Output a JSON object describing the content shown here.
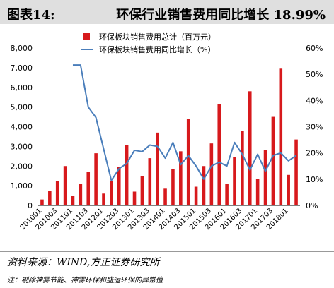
{
  "header": {
    "figure_label": "图表14:",
    "title": "环保行业销售费用同比增长 18.99%"
  },
  "footer": {
    "source": "资料来源：WIND,方正证券研究所",
    "note": "注：剔除神雾节能、神雾环保和盛运环保的异常值"
  },
  "chart_data": {
    "type": "bar",
    "categories": [
      "2010Q1",
      "2010Q2",
      "2010Q3",
      "2010Q4",
      "2011Q1",
      "2011Q2",
      "2011Q3",
      "2011Q4",
      "2012Q1",
      "2012Q2",
      "2012Q3",
      "2012Q4",
      "2013Q1",
      "2013Q2",
      "2013Q3",
      "2013Q4",
      "2014Q1",
      "2014Q2",
      "2014Q3",
      "2014Q4",
      "2015Q1",
      "2015Q2",
      "2015Q3",
      "2015Q4",
      "2016Q1",
      "2016Q2",
      "2016Q3",
      "2016Q4",
      "2017Q1",
      "2017Q2",
      "2017Q3",
      "2017Q4",
      "2018Q1",
      "2018Q2"
    ],
    "x_tick_labels": [
      "201001",
      "201003",
      "201101",
      "201103",
      "201201",
      "201203",
      "201301",
      "201303",
      "201401",
      "201403",
      "201501",
      "201503",
      "201601",
      "201603",
      "201701",
      "201703",
      "201801"
    ],
    "series": [
      {
        "name": "环保板块销售费用总计（百万元）",
        "type": "bar",
        "axis": "left",
        "color": "#d7191c",
        "values": [
          300,
          750,
          1250,
          2000,
          500,
          1100,
          1700,
          2650,
          600,
          1250,
          1950,
          3050,
          700,
          1500,
          2400,
          3700,
          850,
          1850,
          2750,
          4400,
          950,
          2000,
          3150,
          5150,
          1100,
          2450,
          3800,
          5800,
          1350,
          2800,
          4500,
          6950,
          1550,
          3350
        ]
      },
      {
        "name": "环保板块销售费用同比增长（%）",
        "type": "line",
        "axis": "right",
        "color": "#4a7ebb",
        "values": [
          null,
          null,
          null,
          null,
          53.5,
          53.5,
          37.5,
          33.5,
          21.5,
          9.5,
          14.0,
          16.0,
          21.0,
          20.5,
          23.0,
          22.5,
          18.0,
          24.0,
          15.5,
          19.0,
          15.0,
          10.0,
          15.0,
          16.5,
          15.0,
          24.0,
          19.5,
          13.5,
          19.5,
          13.0,
          19.0,
          20.0,
          17.0,
          19.0
        ]
      }
    ],
    "y_left": {
      "min": 0,
      "max": 8000,
      "step": 1000,
      "ticks": [
        "0",
        "1,000",
        "2,000",
        "3,000",
        "4,000",
        "5,000",
        "6,000",
        "7,000",
        "8,000"
      ]
    },
    "y_right": {
      "min": 0,
      "max": 60,
      "step": 10,
      "ticks": [
        "0%",
        "10%",
        "20%",
        "30%",
        "40%",
        "50%",
        "60%"
      ]
    },
    "legend_position": "top-center",
    "grid": false
  }
}
